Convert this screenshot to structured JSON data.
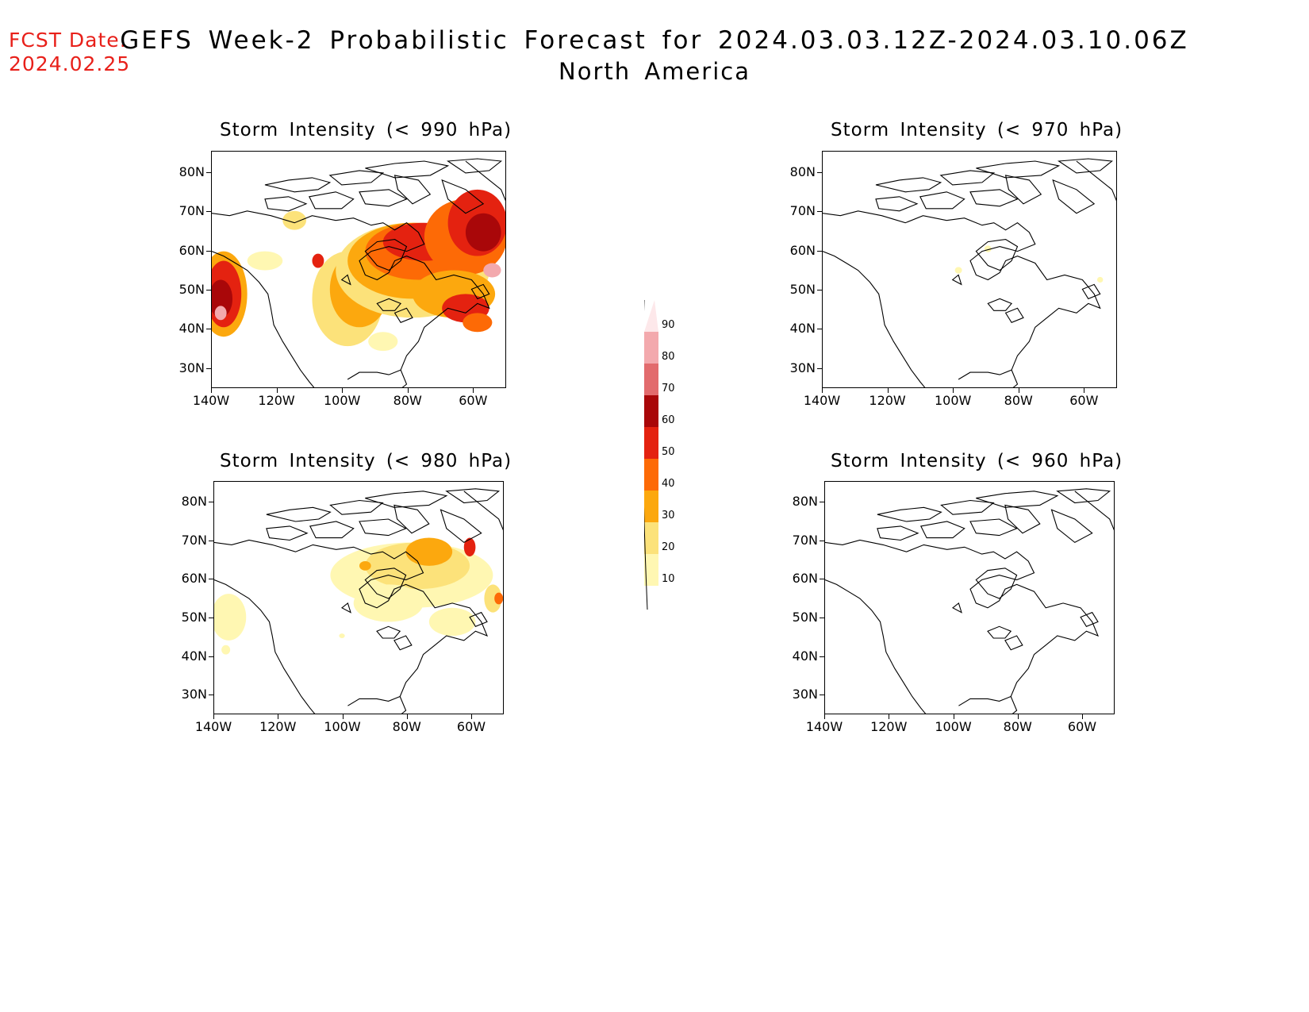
{
  "header": {
    "fcst_label": "FCST Date:",
    "fcst_date": "2024.02.25",
    "title": "GEFS Week-2 Probabilistic Forecast for 2024.03.03.12Z-2024.03.10.06Z",
    "subtitle": "North America"
  },
  "axes": {
    "lat_labels": [
      "80N",
      "70N",
      "60N",
      "50N",
      "40N",
      "30N"
    ],
    "lon_labels": [
      "140W",
      "120W",
      "100W",
      "80W",
      "60W"
    ]
  },
  "panels": [
    {
      "id": "p990",
      "title": "Storm Intensity (< 990 hPa)",
      "coverage": "widespread"
    },
    {
      "id": "p970",
      "title": "Storm Intensity (< 970 hPa)",
      "coverage": "trace"
    },
    {
      "id": "p980",
      "title": "Storm Intensity (< 980 hPa)",
      "coverage": "scattered"
    },
    {
      "id": "p960",
      "title": "Storm Intensity (< 960 hPa)",
      "coverage": "none"
    }
  ],
  "colorbar": {
    "levels": [
      "10",
      "20",
      "30",
      "40",
      "50",
      "60",
      "70",
      "80",
      "90"
    ],
    "colors": [
      "#fff7b2",
      "#fce27a",
      "#fca80e",
      "#fd6a06",
      "#e42210",
      "#a90709",
      "#e26b6d",
      "#f3a9ad",
      "#fde8ea"
    ]
  }
}
